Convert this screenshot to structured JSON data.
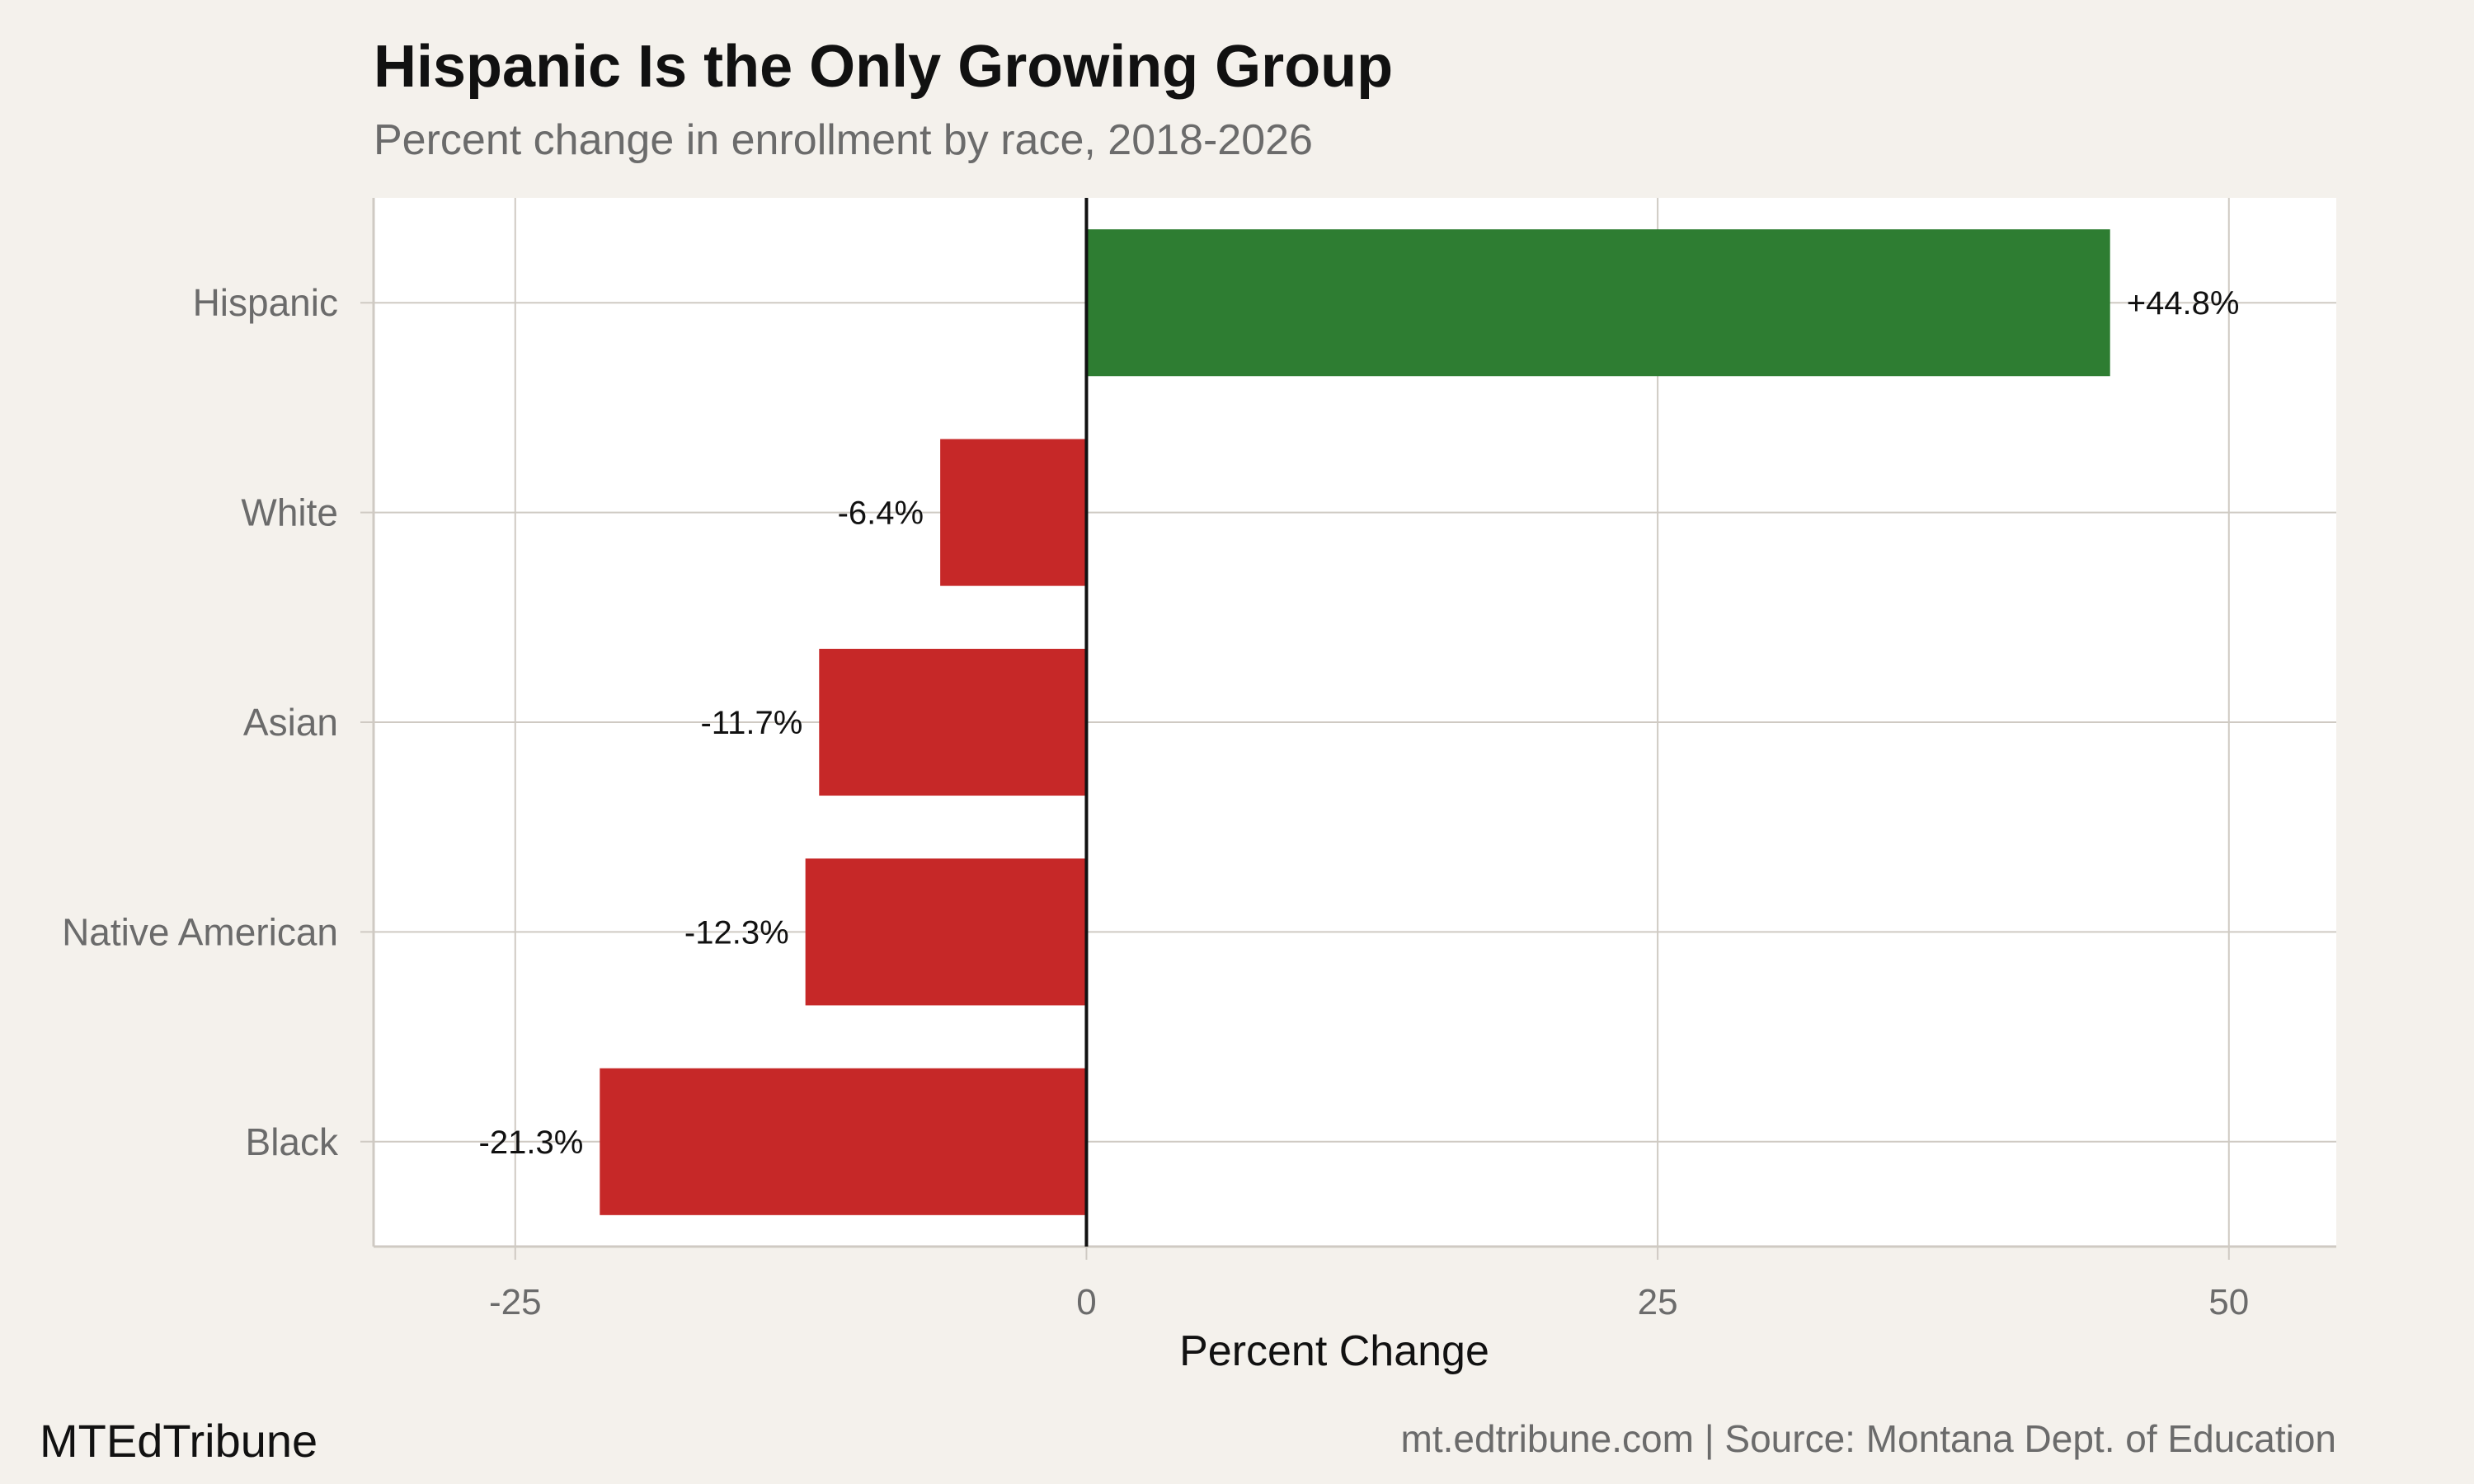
{
  "header": {
    "title": "Hispanic Is the Only Growing Group",
    "subtitle": "Percent change in enrollment by race, 2018-2026"
  },
  "footer": {
    "brand": "MTEdTribune",
    "caption": "mt.edtribune.com | Source: Montana Dept. of Education"
  },
  "chart_data": {
    "type": "bar",
    "orientation": "horizontal",
    "categories": [
      "Hispanic",
      "White",
      "Asian",
      "Native American",
      "Black"
    ],
    "values": [
      44.8,
      -6.4,
      -11.7,
      -12.3,
      -21.3
    ],
    "data_labels": [
      "+44.8%",
      "-6.4%",
      "-11.7%",
      "-12.3%",
      "-21.3%"
    ],
    "xlabel": "Percent Change",
    "ylabel": "",
    "xlim": [
      -31.2,
      54.7
    ],
    "xticks": [
      -25,
      0,
      25,
      50
    ],
    "xtick_labels": [
      "-25",
      "0",
      "25",
      "50"
    ],
    "grid": true,
    "colors": {
      "positive": "#2e7d32",
      "negative": "#c62828",
      "zero_line": "#111111",
      "grid": "#cfcac3",
      "panel": "#ffffff",
      "background": "#f4f1ec",
      "tick_text": "#6b6b6b",
      "label_text": "#111111"
    }
  }
}
